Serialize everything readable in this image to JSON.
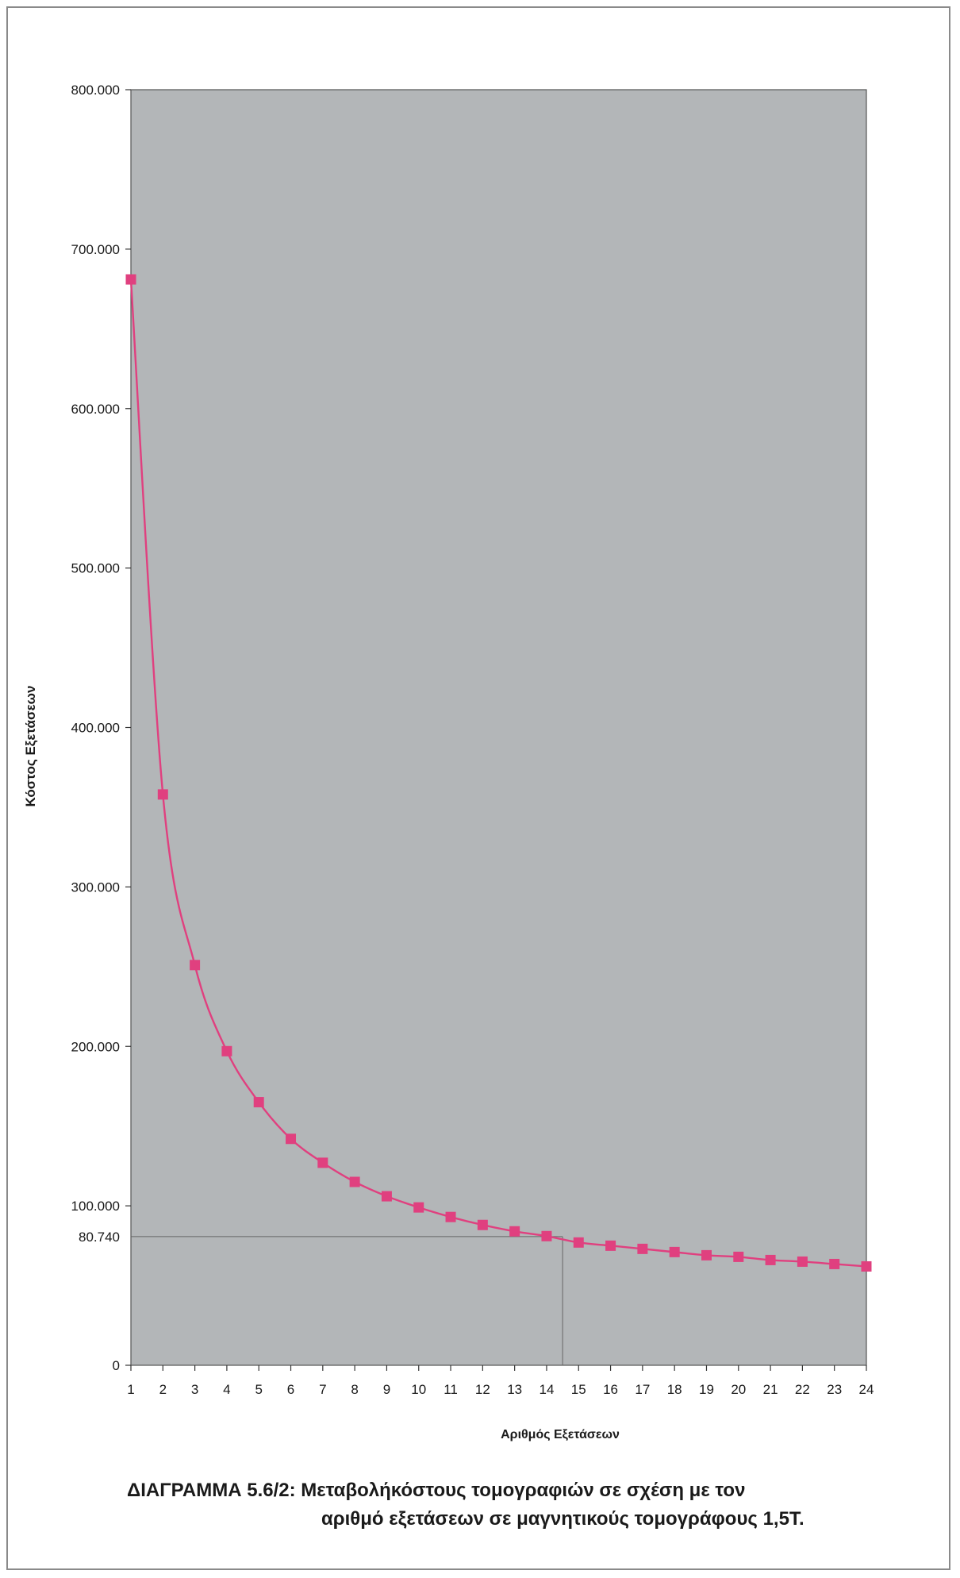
{
  "chart_data": {
    "type": "line",
    "xlabel": "Αριθμός Εξετάσεων",
    "ylabel": "Κόστος Εξετάσεων",
    "x": [
      1,
      2,
      3,
      4,
      5,
      6,
      7,
      8,
      9,
      10,
      11,
      12,
      13,
      14,
      15,
      16,
      17,
      18,
      19,
      20,
      21,
      22,
      23,
      24
    ],
    "series": [
      {
        "values": [
          681000,
          358000,
          251000,
          197000,
          165000,
          142000,
          127000,
          115000,
          106000,
          99000,
          93000,
          88000,
          84000,
          81000,
          77000,
          75000,
          73000,
          71000,
          69000,
          68000,
          66000,
          65000,
          63500,
          62000
        ],
        "color": "#e0407f"
      }
    ],
    "ylim": [
      0,
      800000
    ],
    "yticks": [
      0,
      100000,
      200000,
      300000,
      400000,
      500000,
      600000,
      700000,
      800000
    ],
    "ytick_labels": [
      "0",
      "100.000",
      "200.000",
      "300.000",
      "400.000",
      "500.000",
      "600.000",
      "700.000",
      "800.000"
    ],
    "xticks": [
      "1",
      "2",
      "3",
      "4",
      "5",
      "6",
      "7",
      "8",
      "9",
      "10",
      "11",
      "12",
      "13",
      "14",
      "15",
      "16",
      "17",
      "18",
      "19",
      "20",
      "21",
      "22",
      "23",
      "24"
    ],
    "annotation": {
      "label": "80.740",
      "y": 80740,
      "x": 14.5
    },
    "plot_background": "#b3b6b8",
    "grid": false,
    "legend": "none"
  },
  "caption": {
    "line1": "ΔΙΑΓΡΑΜΜΑ 5.6/2: Μεταβολήκόστους τομογραφιών σε σχέση με τον",
    "line2": "αριθμό εξετάσεων σε μαγνητικούς τομογράφους 1,5Τ."
  }
}
